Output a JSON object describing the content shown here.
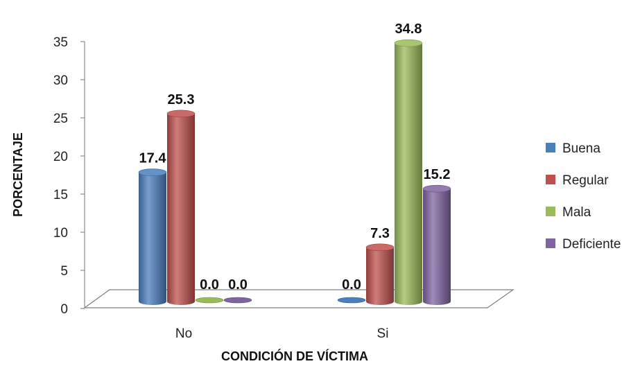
{
  "chart_data": {
    "type": "bar",
    "categories": [
      "No",
      "Si"
    ],
    "series": [
      {
        "name": "Buena",
        "values": [
          17.4,
          0.0
        ],
        "color": "#4a7ebf"
      },
      {
        "name": "Regular",
        "values": [
          25.3,
          7.3
        ],
        "color": "#c0504d"
      },
      {
        "name": "Mala",
        "values": [
          0.0,
          34.8
        ],
        "color": "#9bbb59"
      },
      {
        "name": "Deficiente",
        "values": [
          0.0,
          15.2
        ],
        "color": "#8064a2"
      }
    ],
    "data_labels": [
      [
        "17.4",
        "0.0"
      ],
      [
        "25.3",
        "7.3"
      ],
      [
        "0.0",
        "34.8"
      ],
      [
        "0.0",
        "15.2"
      ]
    ],
    "yticks": [
      "0",
      "5",
      "10",
      "15",
      "20",
      "25",
      "30",
      "35"
    ],
    "ylim": [
      0,
      35
    ],
    "xlabel": "CONDICIÓN DE VÍCTIMA",
    "ylabel": "PORCENTAJE",
    "legend_position": "right",
    "grid": false,
    "style": "3d-cylinder"
  }
}
